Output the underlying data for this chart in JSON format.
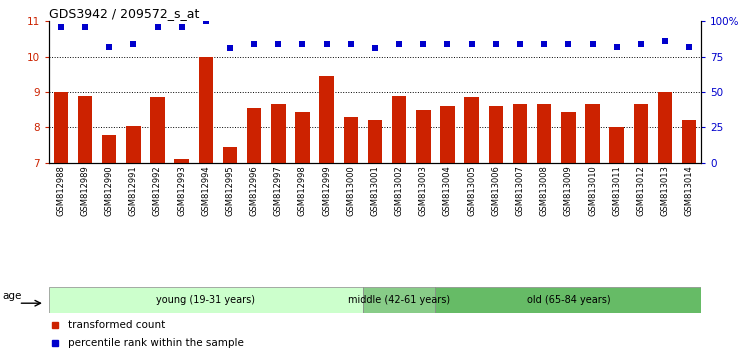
{
  "title": "GDS3942 / 209572_s_at",
  "samples": [
    "GSM812988",
    "GSM812989",
    "GSM812990",
    "GSM812991",
    "GSM812992",
    "GSM812993",
    "GSM812994",
    "GSM812995",
    "GSM812996",
    "GSM812997",
    "GSM812998",
    "GSM812999",
    "GSM813000",
    "GSM813001",
    "GSM813002",
    "GSM813003",
    "GSM813004",
    "GSM813005",
    "GSM813006",
    "GSM813007",
    "GSM813008",
    "GSM813009",
    "GSM813010",
    "GSM813011",
    "GSM813012",
    "GSM813013",
    "GSM813014"
  ],
  "bar_values": [
    9.0,
    8.9,
    7.8,
    8.05,
    8.85,
    7.1,
    10.0,
    7.45,
    8.55,
    8.65,
    8.45,
    9.45,
    8.3,
    8.2,
    8.9,
    8.5,
    8.6,
    8.85,
    8.6,
    8.65,
    8.65,
    8.45,
    8.65,
    8.0,
    8.65,
    9.0,
    8.2
  ],
  "percentile_values": [
    96,
    96,
    82,
    84,
    96,
    96,
    100,
    81,
    84,
    84,
    84,
    84,
    84,
    81,
    84,
    84,
    84,
    84,
    84,
    84,
    84,
    84,
    84,
    82,
    84,
    86,
    82
  ],
  "bar_color": "#cc2200",
  "dot_color": "#0000cc",
  "ylim_left": [
    7,
    11
  ],
  "ylim_right": [
    0,
    100
  ],
  "yticks_left": [
    7,
    8,
    9,
    10,
    11
  ],
  "yticks_right": [
    0,
    25,
    50,
    75,
    100
  ],
  "ytick_labels_right": [
    "0",
    "25",
    "50",
    "75",
    "100%"
  ],
  "groups": [
    {
      "label": "young (19-31 years)",
      "start": 0,
      "end": 13,
      "color": "#ccffcc"
    },
    {
      "label": "middle (42-61 years)",
      "start": 13,
      "end": 16,
      "color": "#88cc88"
    },
    {
      "label": "old (65-84 years)",
      "start": 16,
      "end": 27,
      "color": "#66bb66"
    }
  ],
  "age_label": "age",
  "legend_bar_label": "transformed count",
  "legend_dot_label": "percentile rank within the sample",
  "bar_bottom": 7,
  "grid_levels": [
    8,
    9,
    10
  ]
}
